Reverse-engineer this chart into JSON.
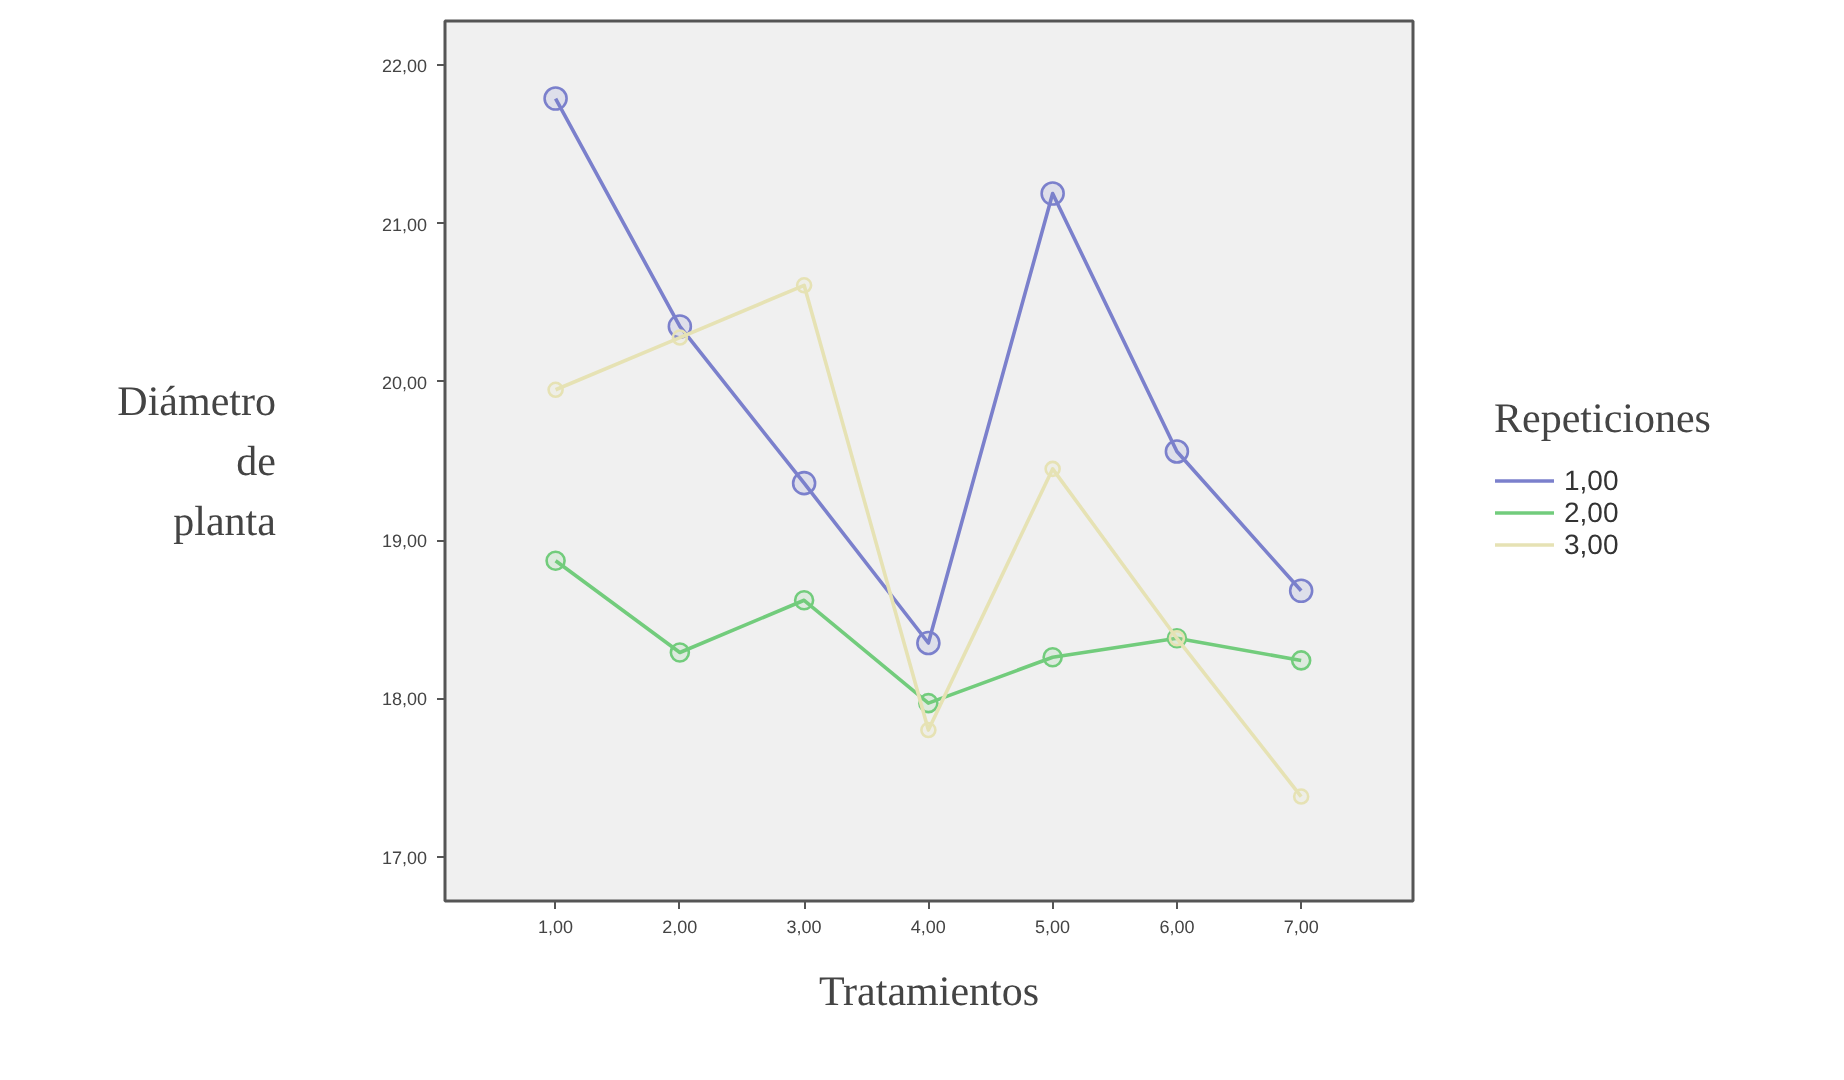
{
  "chart_data": {
    "type": "line",
    "xlabel": "Tratamientos",
    "ylabel": "Diámetro de planta",
    "legend_title": "Repeticiones",
    "x": [
      1,
      2,
      3,
      4,
      5,
      6,
      7
    ],
    "series": [
      {
        "name": "1,00",
        "color": "#7b80cc",
        "values": [
          21.79,
          20.35,
          19.36,
          18.35,
          21.19,
          19.56,
          18.68
        ]
      },
      {
        "name": "2,00",
        "color": "#72cc7c",
        "values": [
          18.87,
          18.29,
          18.62,
          17.97,
          18.26,
          18.38,
          18.24
        ]
      },
      {
        "name": "3,00",
        "color": "#e6e2b4",
        "values": [
          19.95,
          20.28,
          20.61,
          17.8,
          19.45,
          18.38,
          17.38
        ]
      }
    ],
    "xlim": [
      0.11,
      7.9
    ],
    "ylim": [
      16.72,
      22.28
    ],
    "xticks": [
      {
        "value": 1,
        "label": "1,00"
      },
      {
        "value": 2,
        "label": "2,00"
      },
      {
        "value": 3,
        "label": "3,00"
      },
      {
        "value": 4,
        "label": "4,00"
      },
      {
        "value": 5,
        "label": "5,00"
      },
      {
        "value": 6,
        "label": "6,00"
      },
      {
        "value": 7,
        "label": "7,00"
      }
    ],
    "yticks": [
      {
        "value": 17,
        "label": "17,00"
      },
      {
        "value": 18,
        "label": "18,00"
      },
      {
        "value": 19,
        "label": "19,00"
      },
      {
        "value": 20,
        "label": "20,00"
      },
      {
        "value": 21,
        "label": "21,00"
      },
      {
        "value": 22,
        "label": "22,00"
      }
    ],
    "grid": false,
    "legend": "right",
    "marker": "circle",
    "line_style": "solid"
  }
}
